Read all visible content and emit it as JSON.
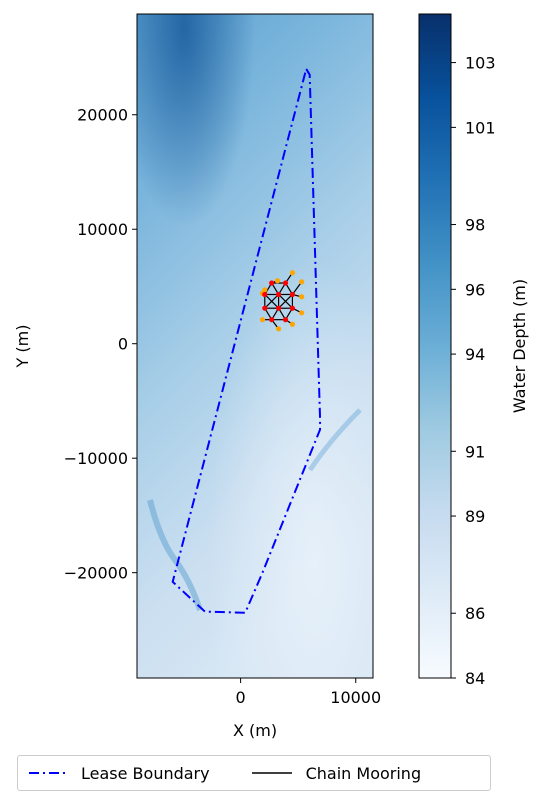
{
  "chart_data": {
    "type": "heatmap",
    "xlabel": "X (m)",
    "ylabel": "Y (m)",
    "xlim": [
      -9000,
      11500
    ],
    "ylim": [
      -29200,
      28800
    ],
    "x_ticks": [
      0,
      10000
    ],
    "x_tick_labels": [
      "0",
      "10000"
    ],
    "y_ticks": [
      20000,
      10000,
      0,
      -10000,
      -20000
    ],
    "y_tick_labels": [
      "20000",
      "10000",
      "0",
      "−10000",
      "−20000"
    ],
    "colorbar": {
      "label": "Water Depth (m)",
      "range": [
        84,
        104.5
      ],
      "ticks": [
        84,
        86,
        89,
        91,
        94,
        96,
        98,
        101,
        103
      ],
      "tick_labels": [
        "84",
        "86",
        "89",
        "91",
        "94",
        "96",
        "98",
        "101",
        "103"
      ],
      "colormap": "Blues"
    },
    "series": [
      {
        "name": "Lease Boundary",
        "style": "dashdot",
        "color": "#0000ff",
        "x": [
          5700,
          6000,
          6900,
          6900,
          1900,
          400,
          -3100,
          -5900,
          5700
        ],
        "y": [
          24000,
          23500,
          -6500,
          -7500,
          -20000,
          -23500,
          -23400,
          -20800,
          24000
        ]
      },
      {
        "name": "Chain Mooring",
        "style": "solid",
        "color": "#000000"
      }
    ],
    "turbines": {
      "color": "#ff0000",
      "x": [
        2100,
        3300,
        4500,
        2100,
        3300,
        4500,
        2700,
        3900,
        2700,
        3900
      ],
      "y": [
        3100,
        3100,
        3100,
        4300,
        4300,
        4300,
        5300,
        5300,
        2100,
        2100
      ]
    },
    "anchors": {
      "color": "#ffa500",
      "x": [
        2100,
        3200,
        4500,
        5300,
        5300,
        5300,
        3300,
        1900,
        1900,
        4500
      ],
      "y": [
        4700,
        5500,
        6200,
        5400,
        4100,
        2700,
        1300,
        2100,
        4400,
        1700
      ]
    },
    "legend": {
      "location": "below",
      "columns": 2
    }
  }
}
